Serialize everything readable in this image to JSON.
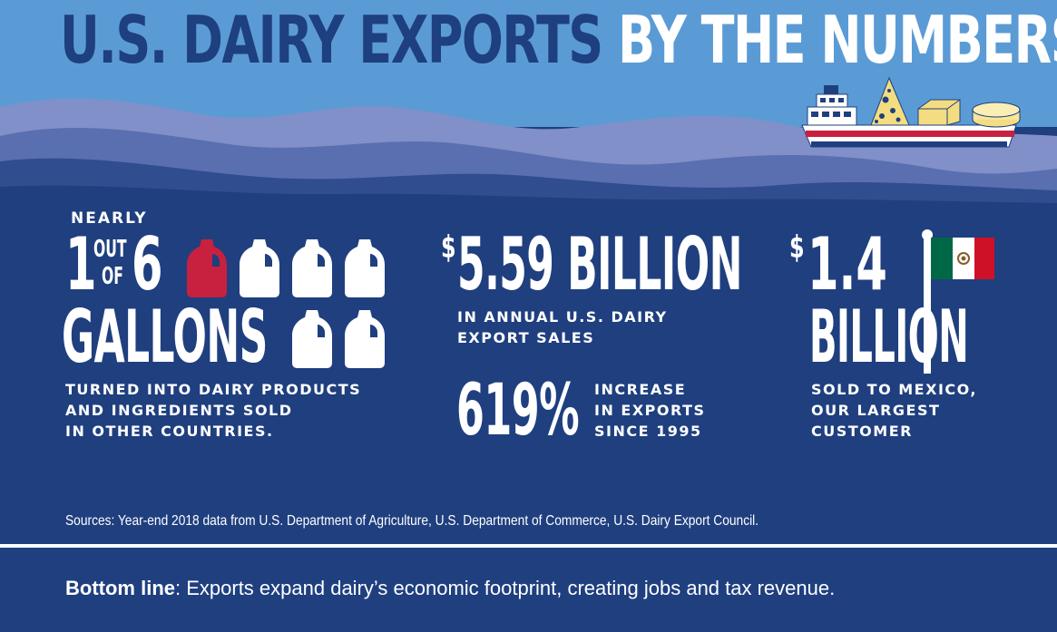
{
  "header": {
    "title_part1": "U.S. DAIRY EXPORTS",
    "title_part2": "BY THE NUMBERS"
  },
  "stat_gallons": {
    "nearly": "NEARLY",
    "number_one": "1",
    "out": "OUT",
    "of": "OF",
    "number_six": "6",
    "unit": "GALLONS",
    "description_lines": [
      "TURNED INTO DAIRY PRODUCTS",
      "AND INGREDIENTS SOLD",
      "IN OTHER COUNTRIES."
    ],
    "jug_count": 6,
    "highlighted_jugs": 1,
    "highlight_color": "#c8203f",
    "jug_color": "#ffffff"
  },
  "stat_sales": {
    "currency": "$",
    "value": "5.59 BILLION",
    "description_lines": [
      "IN ANNUAL U.S. DAIRY",
      "EXPORT SALES"
    ]
  },
  "stat_increase": {
    "value": "619%",
    "description_lines": [
      "INCREASE",
      "IN EXPORTS",
      "SINCE 1995"
    ]
  },
  "stat_mexico": {
    "currency": "$",
    "value": "1.4",
    "unit": "BILLION",
    "description_lines": [
      "SOLD TO MEXICO,",
      "OUR LARGEST",
      "CUSTOMER"
    ],
    "flag_colors": [
      "#006847",
      "#ffffff",
      "#ce1126"
    ]
  },
  "footer": {
    "sources": "Sources: Year-end 2018 data from U.S. Department of Agriculture, U.S. Department of Commerce, U.S. Dairy Export Council.",
    "bottom_line_label": "Bottom line",
    "bottom_line_text": ": Exports expand dairy’s economic footprint, creating jobs and tax revenue."
  },
  "colors": {
    "navy": "#1f3f7f",
    "sky": "#5b9bd5",
    "wave_dark": "#3d5f9f",
    "wave_light": "#7d8fc5"
  }
}
